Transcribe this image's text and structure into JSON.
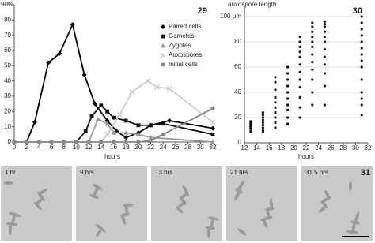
{
  "chart_data": [
    {
      "type": "line",
      "panel": "29",
      "x_label": "hours",
      "xlim": [
        0,
        32
      ],
      "xticks": [
        0,
        2,
        4,
        6,
        8,
        10,
        12,
        14,
        16,
        18,
        20,
        22,
        24,
        26,
        28,
        30,
        32
      ],
      "ylim": [
        0,
        90
      ],
      "yticks": [
        0,
        10,
        20,
        30,
        40,
        50,
        60,
        70,
        80,
        {
          "value": 90,
          "label": "90%"
        }
      ],
      "grid": false,
      "legend": "top-right",
      "series": [
        {
          "name": "Paired cells",
          "color": "#000000",
          "marker": "diamond",
          "x": [
            0,
            2,
            3.3,
            5.5,
            7.3,
            9.4,
            11.3,
            13,
            15,
            16.5,
            18,
            20,
            22,
            25,
            32
          ],
          "values": [
            0,
            0,
            13,
            52,
            58,
            77,
            44,
            25,
            14,
            7,
            3,
            6,
            11,
            14,
            9
          ]
        },
        {
          "name": "Gametes",
          "color": "#111111",
          "marker": "square",
          "x": [
            0,
            2,
            4,
            6,
            8,
            10,
            11.5,
            12.5,
            14,
            15,
            16,
            18,
            20,
            22,
            24,
            32
          ],
          "values": [
            0,
            0,
            0,
            0,
            0,
            0,
            7,
            17,
            24,
            20,
            16,
            14,
            11,
            11,
            12,
            5
          ]
        },
        {
          "name": "Zygotes",
          "color": "#999999",
          "marker": "triangle",
          "x": [
            0,
            2,
            4,
            6,
            8,
            10,
            12,
            13.5,
            15,
            16,
            18,
            20,
            22,
            32
          ],
          "values": [
            0,
            0,
            0,
            0,
            0,
            0,
            0,
            15,
            12,
            6,
            6,
            5,
            3,
            0
          ]
        },
        {
          "name": "Auxospores",
          "color": "#cccccc",
          "marker": "x",
          "x": [
            0,
            2,
            4,
            6,
            8,
            10,
            12,
            14,
            15,
            17,
            19,
            21.5,
            23,
            25,
            32
          ],
          "values": [
            0,
            0,
            0,
            0,
            0,
            0,
            0,
            0,
            5,
            18,
            33,
            40,
            36,
            35,
            13
          ]
        },
        {
          "name": "Initial cells",
          "color": "#888888",
          "marker": "circle",
          "x": [
            0,
            2,
            4,
            6,
            8,
            10,
            12,
            14,
            16,
            18,
            20,
            22,
            24,
            32
          ],
          "values": [
            0,
            0,
            0,
            0,
            0,
            0,
            0,
            0,
            0,
            0,
            0,
            1,
            5,
            22
          ]
        }
      ]
    },
    {
      "type": "scatter",
      "panel": "30",
      "x_label": "hours",
      "y_label": "auxospore length",
      "xlim": [
        12,
        32
      ],
      "xticks": [
        12,
        14,
        16,
        18,
        20,
        22,
        24,
        26,
        28,
        30,
        32
      ],
      "ylim": [
        0,
        100
      ],
      "yticks": [
        0,
        20,
        40,
        60,
        80,
        {
          "value": 100,
          "label": "100 μm"
        }
      ],
      "grid": true,
      "color": "#111111",
      "x": [
        13,
        13,
        13,
        13,
        13,
        13,
        13,
        13,
        15,
        15,
        15,
        15,
        15,
        15,
        15,
        15,
        15,
        17,
        17,
        17,
        17,
        17,
        17,
        17,
        17,
        17,
        17,
        19,
        19,
        19,
        19,
        19,
        19,
        19,
        19,
        19,
        19,
        21,
        21,
        21,
        21,
        21,
        21,
        21,
        21,
        21,
        21,
        21,
        21,
        23,
        23,
        23,
        23,
        23,
        23,
        23,
        23,
        23,
        23,
        23,
        23,
        25,
        25,
        25,
        25,
        25,
        25,
        25,
        25,
        25,
        25,
        25,
        25,
        31,
        31,
        31,
        31,
        31,
        31,
        31,
        31,
        31,
        31,
        31,
        31,
        31,
        31
      ],
      "values": [
        9,
        11,
        12,
        13,
        14,
        15,
        16,
        17,
        10,
        12,
        14,
        16,
        18,
        20,
        22,
        24,
        9,
        12,
        16,
        20,
        24,
        28,
        32,
        36,
        42,
        48,
        52,
        15,
        20,
        26,
        30,
        35,
        40,
        45,
        50,
        55,
        60,
        20,
        28,
        36,
        44,
        50,
        56,
        62,
        68,
        72,
        76,
        80,
        84,
        30,
        40,
        50,
        58,
        64,
        70,
        76,
        80,
        84,
        88,
        92,
        95,
        30,
        45,
        55,
        62,
        68,
        74,
        80,
        84,
        88,
        92,
        94,
        96,
        22,
        30,
        35,
        40,
        50,
        60,
        65,
        70,
        75,
        80,
        85,
        90,
        95,
        100
      ]
    }
  ],
  "micrographs": {
    "panel": "31",
    "labels": [
      "1 hr",
      "9 hrs",
      "13 hrs",
      "21 hrs",
      "31.5 hrs"
    ]
  }
}
